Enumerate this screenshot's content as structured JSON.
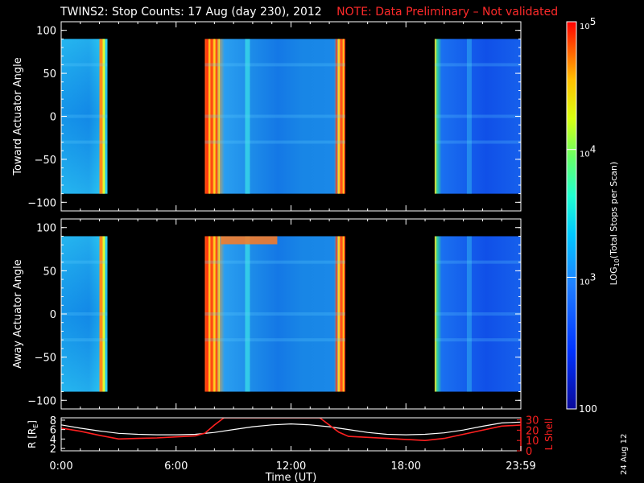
{
  "title": "TWINS2: Stop Counts: 17 Aug (day 230), 2012",
  "note": "NOTE: Data Preliminary – Not validated",
  "date_stamp": "24 Aug 12",
  "colors": {
    "note": "#ff2a2a",
    "r_line": "#ffffff",
    "l_line": "#ff2020",
    "frame": "#ffffff"
  },
  "chart_data": [
    {
      "type": "heatmap",
      "panel": "top",
      "ylabel": "Toward Actuator Angle",
      "ylim": [
        -110,
        110
      ],
      "yticks": [
        "100",
        "50",
        "0",
        "−50",
        "−100"
      ],
      "xlim_hours": [
        0,
        24
      ],
      "data_y_range": [
        -90,
        90
      ],
      "blocks": [
        {
          "x_start": "0:00",
          "x_end": "2:25",
          "level": "mid"
        },
        {
          "x_start": "7:30",
          "x_end": "14:50",
          "level": "mixed"
        },
        {
          "x_start": "19:30",
          "x_end": "24:00",
          "level": "low"
        }
      ]
    },
    {
      "type": "heatmap",
      "panel": "middle",
      "ylabel": "Away Actuator Angle",
      "ylim": [
        -110,
        110
      ],
      "yticks": [
        "100",
        "50",
        "0",
        "−50",
        "−100"
      ],
      "xlim_hours": [
        0,
        24
      ],
      "data_y_range": [
        -90,
        90
      ],
      "blocks": [
        {
          "x_start": "0:00",
          "x_end": "2:25",
          "level": "mid"
        },
        {
          "x_start": "7:30",
          "x_end": "14:50",
          "level": "mixed"
        },
        {
          "x_start": "19:30",
          "x_end": "24:00",
          "level": "low"
        }
      ]
    },
    {
      "type": "line",
      "panel": "bottom",
      "ylabel_left": "R [R",
      "ylabel_left_sub": "E",
      "ylabel_left_end": "]",
      "ylabel_right": "L Shell",
      "yticks_left": [
        "8",
        "6",
        "4",
        "2"
      ],
      "yticks_right": [
        "30",
        "20",
        "10",
        "0"
      ],
      "ylim_left": [
        1.5,
        8.5
      ],
      "ylim_right": [
        0,
        32
      ],
      "xlabel": "Time (UT)",
      "xticks": [
        "0:00",
        "6:00",
        "12:00",
        "18:00",
        "23:59"
      ],
      "series": [
        {
          "axis": "left",
          "x": [
            0,
            1,
            2,
            3,
            4,
            5,
            6,
            7,
            8,
            9,
            10,
            11,
            12,
            13,
            14,
            15,
            16,
            17,
            18,
            19,
            20,
            21,
            22,
            23,
            24
          ],
          "values": [
            7.0,
            6.3,
            5.7,
            5.2,
            5.0,
            4.9,
            4.9,
            5.0,
            5.4,
            6.0,
            6.6,
            7.0,
            7.2,
            7.0,
            6.6,
            6.0,
            5.4,
            5.0,
            4.9,
            5.0,
            5.3,
            5.9,
            6.7,
            7.4,
            7.6
          ]
        },
        {
          "axis": "right",
          "x": [
            0,
            1,
            2,
            3,
            4,
            5,
            6,
            7,
            7.5,
            8,
            8.5,
            13.5,
            14,
            14.5,
            15,
            16,
            17,
            18,
            19,
            20,
            21,
            22,
            23,
            24
          ],
          "values": [
            22,
            19,
            15,
            11.5,
            12,
            12.5,
            13.5,
            14.5,
            17,
            25,
            32,
            32,
            25,
            18,
            14,
            13,
            12,
            11,
            10,
            12,
            16,
            20,
            24,
            25
          ]
        }
      ]
    }
  ],
  "colorbar": {
    "label_main": "LOG",
    "label_sub": "10",
    "label_rest": "(Total Stops per Scan)",
    "ticks": [
      {
        "base": "10",
        "exp": "5"
      },
      {
        "base": "10",
        "exp": "4"
      },
      {
        "base": "10",
        "exp": "3"
      }
    ],
    "bottom_label": "100"
  }
}
